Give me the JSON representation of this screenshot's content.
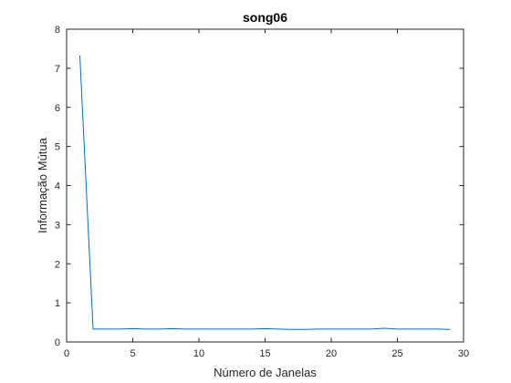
{
  "chart_data": {
    "type": "line",
    "title": "song06",
    "xlabel": "Número de Janelas",
    "ylabel": "Informação Mútua",
    "xlim": [
      0,
      30
    ],
    "ylim": [
      0,
      8
    ],
    "xticks": [
      0,
      5,
      10,
      15,
      20,
      25,
      30
    ],
    "yticks": [
      0,
      1,
      2,
      3,
      4,
      5,
      6,
      7,
      8
    ],
    "grid": false,
    "box": true,
    "line_color": "#0072BD",
    "axis_color": "#262626",
    "series": [
      {
        "x": [
          1,
          2,
          3,
          4,
          5,
          6,
          7,
          8,
          9,
          10,
          11,
          12,
          13,
          14,
          15,
          16,
          17,
          18,
          19,
          20,
          21,
          22,
          23,
          24,
          25,
          26,
          27,
          28,
          29
        ],
        "values": [
          7.33,
          0.33,
          0.33,
          0.33,
          0.34,
          0.33,
          0.33,
          0.34,
          0.33,
          0.33,
          0.33,
          0.33,
          0.33,
          0.33,
          0.34,
          0.33,
          0.32,
          0.32,
          0.33,
          0.33,
          0.33,
          0.33,
          0.33,
          0.35,
          0.33,
          0.33,
          0.33,
          0.33,
          0.32
        ]
      }
    ]
  }
}
